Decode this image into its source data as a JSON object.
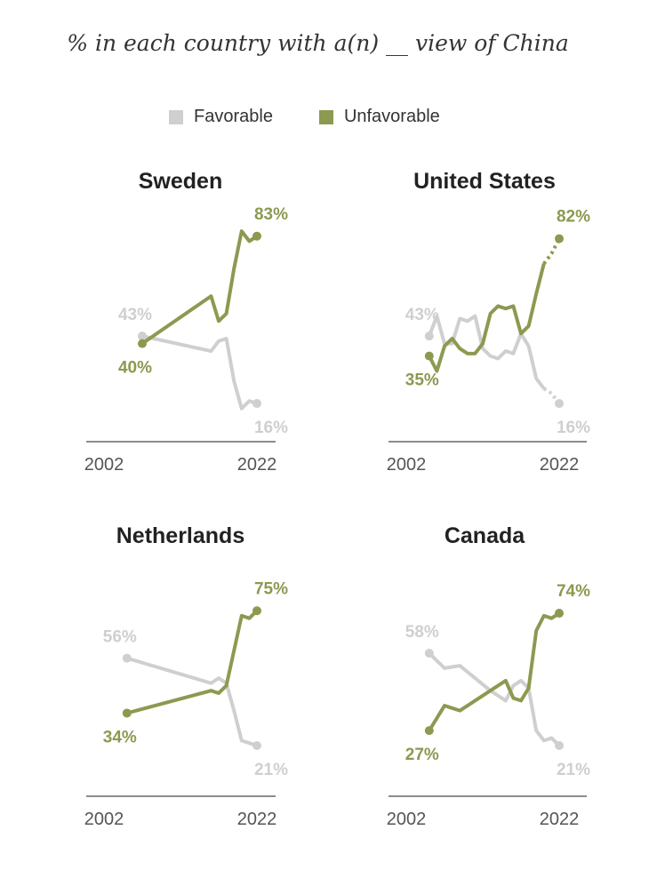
{
  "title": "% in each country with a(n) __ view of China",
  "legend": [
    {
      "name": "Favorable",
      "color": "#cfcfcf"
    },
    {
      "name": "Unfavorable",
      "color": "#8b9a50"
    }
  ],
  "chart_data": [
    {
      "type": "line",
      "title": "Sweden",
      "xticks": [
        "2002",
        "2022"
      ],
      "xlim": [
        2002,
        2022
      ],
      "ylim": [
        0,
        100
      ],
      "grid": false,
      "series": [
        {
          "name": "Favorable",
          "color": "#cfcfcf",
          "x": [
            2007,
            2016,
            2017,
            2018,
            2019,
            2020,
            2021,
            2022
          ],
          "values": [
            43,
            37,
            41,
            42,
            25,
            14,
            17,
            16
          ],
          "start_label": "43%",
          "end_label": "16%"
        },
        {
          "name": "Unfavorable",
          "color": "#8b9a50",
          "x": [
            2007,
            2016,
            2017,
            2018,
            2019,
            2020,
            2021,
            2022
          ],
          "values": [
            40,
            59,
            49,
            52,
            70,
            85,
            81,
            83
          ],
          "start_label": "40%",
          "end_label": "83%"
        }
      ]
    },
    {
      "type": "line",
      "title": "United States",
      "xticks": [
        "2002",
        "2022"
      ],
      "xlim": [
        2002,
        2022
      ],
      "ylim": [
        0,
        100
      ],
      "grid": false,
      "dashed_from": 2020,
      "series": [
        {
          "name": "Favorable",
          "color": "#cfcfcf",
          "x": [
            2005,
            2006,
            2007,
            2008,
            2009,
            2010,
            2011,
            2012,
            2013,
            2014,
            2015,
            2016,
            2017,
            2018,
            2019,
            2020,
            2021,
            2022
          ],
          "values": [
            43,
            51,
            40,
            40,
            50,
            49,
            51,
            38,
            35,
            34,
            37,
            36,
            44,
            39,
            26,
            22,
            20,
            16
          ],
          "start_label": "43%",
          "end_label": "16%"
        },
        {
          "name": "Unfavorable",
          "color": "#8b9a50",
          "x": [
            2005,
            2006,
            2007,
            2008,
            2009,
            2010,
            2011,
            2012,
            2013,
            2014,
            2015,
            2016,
            2017,
            2018,
            2019,
            2020,
            2021,
            2022
          ],
          "values": [
            35,
            29,
            39,
            42,
            38,
            36,
            36,
            40,
            52,
            55,
            54,
            55,
            44,
            47,
            60,
            72,
            76,
            82
          ],
          "start_label": "35%",
          "end_label": "82%"
        }
      ]
    },
    {
      "type": "line",
      "title": "Netherlands",
      "xticks": [
        "2002",
        "2022"
      ],
      "xlim": [
        2002,
        2022
      ],
      "ylim": [
        0,
        100
      ],
      "grid": false,
      "series": [
        {
          "name": "Favorable",
          "color": "#cfcfcf",
          "x": [
            2005,
            2016,
            2017,
            2018,
            2019,
            2020,
            2021,
            2022
          ],
          "values": [
            56,
            46,
            48,
            46,
            35,
            23,
            22,
            21
          ],
          "start_label": "56%",
          "end_label": "21%"
        },
        {
          "name": "Unfavorable",
          "color": "#8b9a50",
          "x": [
            2005,
            2016,
            2017,
            2018,
            2019,
            2020,
            2021,
            2022
          ],
          "values": [
            34,
            43,
            42,
            45,
            59,
            73,
            72,
            75
          ],
          "start_label": "34%",
          "end_label": "75%"
        }
      ]
    },
    {
      "type": "line",
      "title": "Canada",
      "xticks": [
        "2002",
        "2022"
      ],
      "xlim": [
        2002,
        2022
      ],
      "ylim": [
        0,
        100
      ],
      "grid": false,
      "series": [
        {
          "name": "Favorable",
          "color": "#cfcfcf",
          "x": [
            2005,
            2007,
            2009,
            2013,
            2015,
            2016,
            2017,
            2018,
            2019,
            2020,
            2021,
            2022
          ],
          "values": [
            58,
            52,
            53,
            43,
            39,
            45,
            47,
            44,
            27,
            23,
            24,
            21
          ],
          "start_label": "58%",
          "end_label": "21%"
        },
        {
          "name": "Unfavorable",
          "color": "#8b9a50",
          "x": [
            2005,
            2007,
            2009,
            2013,
            2015,
            2016,
            2017,
            2018,
            2019,
            2020,
            2021,
            2022
          ],
          "values": [
            27,
            37,
            35,
            43,
            47,
            40,
            39,
            44,
            67,
            73,
            72,
            74
          ],
          "start_label": "27%",
          "end_label": "74%"
        }
      ]
    }
  ]
}
